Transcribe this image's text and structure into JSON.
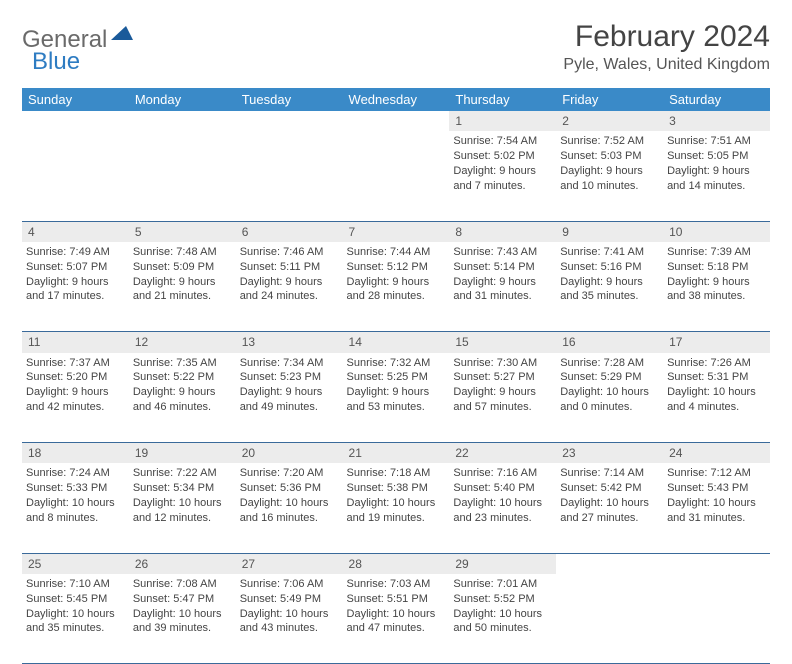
{
  "logo": {
    "textA": "General",
    "textB": "Blue"
  },
  "title": "February 2024",
  "location": "Pyle, Wales, United Kingdom",
  "colors": {
    "header_bg": "#3a8ac8",
    "header_text": "#ffffff",
    "daynum_bg": "#ececec",
    "rule": "#3a6a9a",
    "accent": "#2e7cc2",
    "body_text": "#444444"
  },
  "weekdays": [
    "Sunday",
    "Monday",
    "Tuesday",
    "Wednesday",
    "Thursday",
    "Friday",
    "Saturday"
  ],
  "weeks": [
    [
      null,
      null,
      null,
      null,
      {
        "n": "1",
        "sr": "7:54 AM",
        "ss": "5:02 PM",
        "dl": "9 hours and 7 minutes."
      },
      {
        "n": "2",
        "sr": "7:52 AM",
        "ss": "5:03 PM",
        "dl": "9 hours and 10 minutes."
      },
      {
        "n": "3",
        "sr": "7:51 AM",
        "ss": "5:05 PM",
        "dl": "9 hours and 14 minutes."
      }
    ],
    [
      {
        "n": "4",
        "sr": "7:49 AM",
        "ss": "5:07 PM",
        "dl": "9 hours and 17 minutes."
      },
      {
        "n": "5",
        "sr": "7:48 AM",
        "ss": "5:09 PM",
        "dl": "9 hours and 21 minutes."
      },
      {
        "n": "6",
        "sr": "7:46 AM",
        "ss": "5:11 PM",
        "dl": "9 hours and 24 minutes."
      },
      {
        "n": "7",
        "sr": "7:44 AM",
        "ss": "5:12 PM",
        "dl": "9 hours and 28 minutes."
      },
      {
        "n": "8",
        "sr": "7:43 AM",
        "ss": "5:14 PM",
        "dl": "9 hours and 31 minutes."
      },
      {
        "n": "9",
        "sr": "7:41 AM",
        "ss": "5:16 PM",
        "dl": "9 hours and 35 minutes."
      },
      {
        "n": "10",
        "sr": "7:39 AM",
        "ss": "5:18 PM",
        "dl": "9 hours and 38 minutes."
      }
    ],
    [
      {
        "n": "11",
        "sr": "7:37 AM",
        "ss": "5:20 PM",
        "dl": "9 hours and 42 minutes."
      },
      {
        "n": "12",
        "sr": "7:35 AM",
        "ss": "5:22 PM",
        "dl": "9 hours and 46 minutes."
      },
      {
        "n": "13",
        "sr": "7:34 AM",
        "ss": "5:23 PM",
        "dl": "9 hours and 49 minutes."
      },
      {
        "n": "14",
        "sr": "7:32 AM",
        "ss": "5:25 PM",
        "dl": "9 hours and 53 minutes."
      },
      {
        "n": "15",
        "sr": "7:30 AM",
        "ss": "5:27 PM",
        "dl": "9 hours and 57 minutes."
      },
      {
        "n": "16",
        "sr": "7:28 AM",
        "ss": "5:29 PM",
        "dl": "10 hours and 0 minutes."
      },
      {
        "n": "17",
        "sr": "7:26 AM",
        "ss": "5:31 PM",
        "dl": "10 hours and 4 minutes."
      }
    ],
    [
      {
        "n": "18",
        "sr": "7:24 AM",
        "ss": "5:33 PM",
        "dl": "10 hours and 8 minutes."
      },
      {
        "n": "19",
        "sr": "7:22 AM",
        "ss": "5:34 PM",
        "dl": "10 hours and 12 minutes."
      },
      {
        "n": "20",
        "sr": "7:20 AM",
        "ss": "5:36 PM",
        "dl": "10 hours and 16 minutes."
      },
      {
        "n": "21",
        "sr": "7:18 AM",
        "ss": "5:38 PM",
        "dl": "10 hours and 19 minutes."
      },
      {
        "n": "22",
        "sr": "7:16 AM",
        "ss": "5:40 PM",
        "dl": "10 hours and 23 minutes."
      },
      {
        "n": "23",
        "sr": "7:14 AM",
        "ss": "5:42 PM",
        "dl": "10 hours and 27 minutes."
      },
      {
        "n": "24",
        "sr": "7:12 AM",
        "ss": "5:43 PM",
        "dl": "10 hours and 31 minutes."
      }
    ],
    [
      {
        "n": "25",
        "sr": "7:10 AM",
        "ss": "5:45 PM",
        "dl": "10 hours and 35 minutes."
      },
      {
        "n": "26",
        "sr": "7:08 AM",
        "ss": "5:47 PM",
        "dl": "10 hours and 39 minutes."
      },
      {
        "n": "27",
        "sr": "7:06 AM",
        "ss": "5:49 PM",
        "dl": "10 hours and 43 minutes."
      },
      {
        "n": "28",
        "sr": "7:03 AM",
        "ss": "5:51 PM",
        "dl": "10 hours and 47 minutes."
      },
      {
        "n": "29",
        "sr": "7:01 AM",
        "ss": "5:52 PM",
        "dl": "10 hours and 50 minutes."
      },
      null,
      null
    ]
  ],
  "labels": {
    "sunrise": "Sunrise:",
    "sunset": "Sunset:",
    "daylight": "Daylight:"
  }
}
